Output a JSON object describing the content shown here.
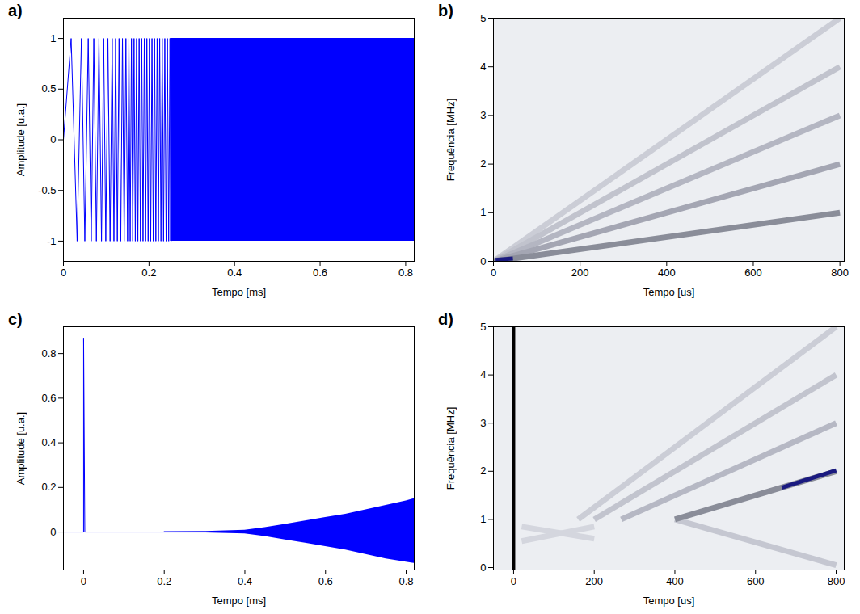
{
  "chart_data": [
    {
      "type": "line",
      "title": "a)",
      "x_label": "Tempo [ms]",
      "y_label": "Amplitude [u.a.]",
      "xlim": [
        0,
        0.82
      ],
      "xticks": [
        0,
        0.2,
        0.4,
        0.6,
        0.8
      ],
      "ylim": [
        -1.2,
        1.2
      ],
      "yticks": [
        -1,
        -0.5,
        0,
        0.5,
        1
      ],
      "series": [
        {
          "type": "line",
          "color": "#0000ff",
          "x": [
            0,
            0.018,
            0.032,
            0.042,
            0.05,
            0.058,
            0.065,
            0.071,
            0.077,
            0.083,
            0.089,
            0.094,
            0.099,
            0.104,
            0.109,
            0.114,
            0.118,
            0.122,
            0.126,
            0.13,
            0.134,
            0.138,
            0.142,
            0.146,
            0.15,
            0.153,
            0.156,
            0.159,
            0.162,
            0.165,
            0.168,
            0.171,
            0.174,
            0.177,
            0.18,
            0.183,
            0.186,
            0.189,
            0.192,
            0.195,
            0.198,
            0.201,
            0.204,
            0.207,
            0.21,
            0.213,
            0.216,
            0.219,
            0.222,
            0.225,
            0.228,
            0.231,
            0.234,
            0.237,
            0.24,
            0.243,
            0.246,
            0.249,
            0.252
          ],
          "values": [
            0,
            1,
            -1,
            1,
            -1,
            1,
            -1,
            1,
            -1,
            1,
            -1,
            1,
            -1,
            1,
            -1,
            1,
            -1,
            1,
            -1,
            1,
            -1,
            1,
            -1,
            1,
            -1,
            1,
            -1,
            1,
            -1,
            1,
            -1,
            1,
            -1,
            1,
            -1,
            1,
            -1,
            1,
            -1,
            1,
            -1,
            1,
            -1,
            1,
            -1,
            1,
            -1,
            1,
            -1,
            1,
            -1,
            1,
            -1,
            1,
            -1,
            1,
            -1,
            1,
            -1
          ]
        },
        {
          "type": "area",
          "color": "#0000ff",
          "x": [
            0.25,
            0.4,
            0.6,
            0.82
          ],
          "values": [
            1,
            1,
            1,
            1
          ],
          "lower": [
            -1,
            -1,
            -1,
            -1
          ]
        }
      ]
    },
    {
      "type": "spectrogram",
      "title": "b)",
      "x_label": "Tempo [us]",
      "y_label": "Frequência [MHz]",
      "xlim": [
        0,
        810
      ],
      "xticks": [
        0,
        200,
        400,
        600,
        800
      ],
      "ylim": [
        0,
        5
      ],
      "yticks": [
        0,
        1,
        2,
        3,
        4,
        5
      ],
      "series": [
        {
          "color": "#cbcdd6",
          "x": [
            0,
            800
          ],
          "values": [
            0,
            5
          ]
        },
        {
          "color": "#c1c3cd",
          "x": [
            0,
            800
          ],
          "values": [
            0,
            4
          ]
        },
        {
          "color": "#b4b6c2",
          "x": [
            0,
            800
          ],
          "values": [
            0,
            3
          ]
        },
        {
          "color": "#a4a6b3",
          "x": [
            0,
            800
          ],
          "values": [
            0,
            2
          ]
        },
        {
          "color": "#8a8d99",
          "x": [
            0,
            800
          ],
          "values": [
            0,
            1
          ]
        },
        {
          "color": "#1a1a80",
          "x": [
            5,
            45
          ],
          "values": [
            0.03,
            0.06
          ]
        }
      ]
    },
    {
      "type": "line",
      "title": "c)",
      "x_label": "Tempo [ms]",
      "y_label": "Amplitude [u.a.]",
      "xlim": [
        -0.05,
        0.82
      ],
      "xticks": [
        0,
        0.2,
        0.4,
        0.6,
        0.8
      ],
      "ylim": [
        -0.17,
        0.92
      ],
      "yticks": [
        0,
        0.2,
        0.4,
        0.6,
        0.8
      ],
      "series": [
        {
          "type": "area",
          "color": "#0000ff",
          "x": [
            0.2,
            0.3,
            0.4,
            0.45,
            0.5,
            0.55,
            0.6,
            0.65,
            0.7,
            0.75,
            0.8,
            0.82
          ],
          "values": [
            0.002,
            0.003,
            0.008,
            0.02,
            0.035,
            0.05,
            0.065,
            0.08,
            0.1,
            0.12,
            0.14,
            0.15
          ],
          "lower": [
            -0.002,
            -0.003,
            -0.008,
            -0.02,
            -0.035,
            -0.05,
            -0.065,
            -0.08,
            -0.1,
            -0.12,
            -0.135,
            -0.14
          ]
        },
        {
          "type": "line",
          "color": "#0000ff",
          "x": [
            -0.05,
            0,
            0,
            0.003,
            0.82
          ],
          "values": [
            0,
            0,
            0.87,
            0,
            0
          ]
        }
      ]
    },
    {
      "type": "spectrogram",
      "title": "d)",
      "x_label": "Tempo [us]",
      "y_label": "Frequência [MHz]",
      "xlim": [
        -50,
        820
      ],
      "xticks": [
        0,
        200,
        400,
        600,
        800
      ],
      "ylim": [
        -0.05,
        5
      ],
      "yticks": [
        0,
        1,
        2,
        3,
        4,
        5
      ],
      "series": [
        {
          "color": "#d4d6de",
          "x": [
            20,
            200
          ],
          "values": [
            0.55,
            0.85
          ]
        },
        {
          "color": "#d4d6de",
          "x": [
            20,
            200
          ],
          "values": [
            0.85,
            0.6
          ]
        },
        {
          "color": "#cbcdd6",
          "x": [
            160,
            800
          ],
          "values": [
            1,
            5
          ]
        },
        {
          "color": "#c2c4ce",
          "x": [
            200,
            800
          ],
          "values": [
            1,
            4
          ]
        },
        {
          "color": "#b6b8c4",
          "x": [
            267,
            800
          ],
          "values": [
            1,
            3
          ]
        },
        {
          "color": "#c5c7d1",
          "x": [
            400,
            800
          ],
          "values": [
            1,
            0.05
          ]
        },
        {
          "color": "#8a8d99",
          "x": [
            400,
            800
          ],
          "values": [
            1,
            2
          ]
        },
        {
          "color": "#1a1a80",
          "x": [
            665,
            800
          ],
          "values": [
            1.66,
            2.02
          ]
        },
        {
          "color": "#000000",
          "x": [
            0,
            0
          ],
          "values": [
            -0.05,
            5
          ]
        }
      ]
    }
  ]
}
